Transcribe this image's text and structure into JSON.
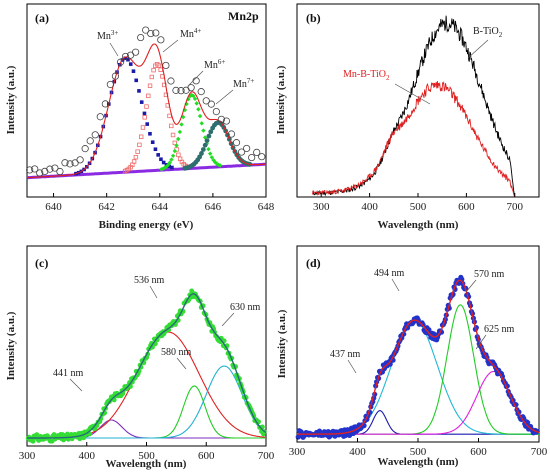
{
  "chart_data": [
    {
      "panel_label": "(a)",
      "type": "line",
      "corner_label": "Mn2p",
      "xlabel": "Binding energy (eV)",
      "ylabel": "Intensity (a.u.)",
      "xlim": [
        639,
        648
      ],
      "xticks": [
        640,
        642,
        644,
        646,
        648
      ],
      "series": [
        {
          "peak_center": 642.7,
          "color": "#1a1aa8",
          "marker": "square"
        },
        {
          "peak_center": 643.9,
          "color": "#f06a6a",
          "marker": "open-square"
        },
        {
          "peak_center": 645.2,
          "color": "#22dd22",
          "marker": "diamond"
        },
        {
          "peak_center": 646.2,
          "color": "#2f6e6e",
          "marker": "circle"
        },
        {
          "color": "#8a2be2",
          "role": "background"
        },
        {
          "color": "#e02020",
          "role": "envelope"
        },
        {
          "color": "#444444",
          "role": "experimental",
          "marker": "open-circle"
        }
      ],
      "annotations": [
        {
          "text": "Mn",
          "sup": "3+",
          "x": 642.6
        },
        {
          "text": "Mn",
          "sup": "4+",
          "x": 644.6
        },
        {
          "text": "Mn",
          "sup": "6+",
          "x": 645.7
        },
        {
          "text": "Mn",
          "sup": "7+",
          "x": 646.8
        }
      ]
    },
    {
      "panel_label": "(b)",
      "type": "line",
      "xlabel": "Wavelength (nm)",
      "ylabel": "Intensity (a.u.)",
      "xlim": [
        250,
        750
      ],
      "xticks": [
        300,
        400,
        500,
        600,
        700
      ],
      "series": [
        {
          "name": "B-TiO2",
          "name_parts": [
            "B-TiO",
            "2"
          ],
          "color": "#000000",
          "x_range": [
            280,
            700
          ],
          "peak_x": 560
        },
        {
          "name": "Mn-B-TiO2",
          "name_parts": [
            "Mn-B-TiO",
            "2"
          ],
          "color": "#e02020",
          "x_range": [
            280,
            700
          ],
          "peak_x": 535
        }
      ]
    },
    {
      "panel_label": "(c)",
      "type": "line",
      "xlabel": "Wavelength (nm)",
      "ylabel": "Intensity (a.u.)",
      "xlim": [
        300,
        700
      ],
      "xticks": [
        300,
        400,
        500,
        600,
        700
      ],
      "series": [
        {
          "role": "experimental",
          "color": "#33dd33",
          "marker": "circle"
        },
        {
          "role": "fit",
          "color": "#2a6b7a"
        },
        {
          "peak_nm": 441,
          "color": "#7a2fc0"
        },
        {
          "peak_nm": 536,
          "color": "#e02020"
        },
        {
          "peak_nm": 580,
          "color": "#22cc22"
        },
        {
          "peak_nm": 630,
          "color": "#22b0d0"
        }
      ],
      "annotations": [
        "441 nm",
        "536 nm",
        "580 nm",
        "630 nm"
      ]
    },
    {
      "panel_label": "(d)",
      "type": "line",
      "xlabel": "Wavelength (nm)",
      "ylabel": "Intensity (a.u.)",
      "xlim": [
        300,
        700
      ],
      "xticks": [
        300,
        400,
        500,
        600,
        700
      ],
      "series": [
        {
          "role": "experimental",
          "color": "#2233cc",
          "marker": "circle"
        },
        {
          "role": "fit",
          "color": "#e02020"
        },
        {
          "peak_nm": 437,
          "color": "#1a1ab0"
        },
        {
          "peak_nm": 494,
          "color": "#22b8d8"
        },
        {
          "peak_nm": 570,
          "color": "#22cc22"
        },
        {
          "peak_nm": 625,
          "color": "#e020e0"
        }
      ],
      "annotations": [
        "437 nm",
        "494 nm",
        "570 nm",
        "625 nm"
      ]
    }
  ]
}
